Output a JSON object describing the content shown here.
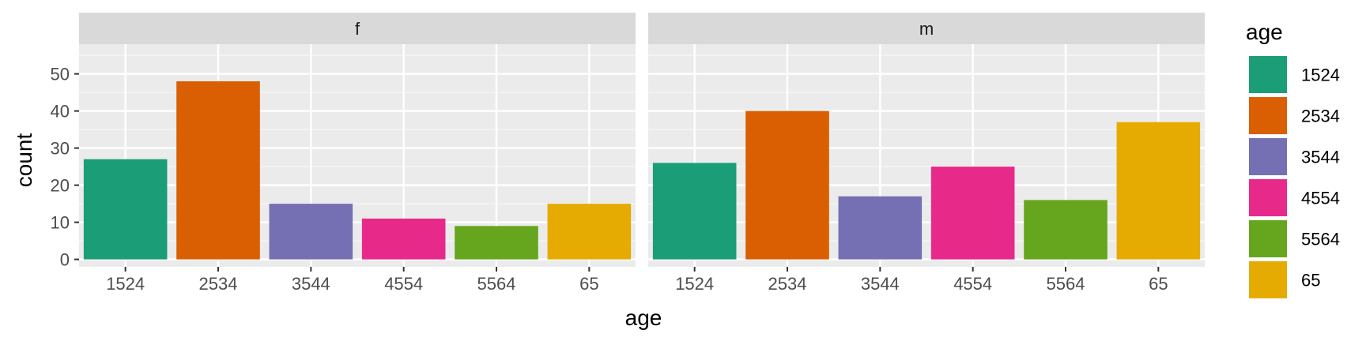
{
  "chart_data": {
    "type": "bar",
    "xlabel": "age",
    "ylabel": "count",
    "ylim": [
      -2,
      58
    ],
    "yticks": [
      0,
      10,
      20,
      30,
      40,
      50
    ],
    "categories": [
      "1524",
      "2534",
      "3544",
      "4554",
      "5564",
      "65"
    ],
    "colors": [
      "#1b9e77",
      "#d95f02",
      "#7570b3",
      "#e7298a",
      "#66a61e",
      "#e6ab02"
    ],
    "grid": true,
    "legend": {
      "title": "age",
      "placement": "right",
      "items": [
        "1524",
        "2534",
        "3544",
        "4554",
        "5564",
        "65"
      ]
    },
    "panels": [
      {
        "label": "f",
        "values": [
          27,
          48,
          15,
          11,
          9,
          15
        ]
      },
      {
        "label": "m",
        "values": [
          26,
          40,
          17,
          25,
          16,
          37
        ]
      }
    ]
  }
}
